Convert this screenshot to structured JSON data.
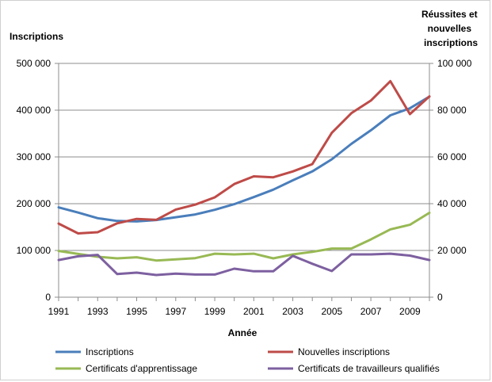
{
  "chart_data": {
    "type": "line",
    "y_left_label": "Inscriptions",
    "y_right_label": [
      "Réussites et",
      "nouvelles",
      "inscriptions"
    ],
    "xlabel": "Année",
    "y_left_lim": [
      0,
      500000
    ],
    "y_right_lim": [
      0,
      100000
    ],
    "y_left_ticks": [
      "0",
      "100 000",
      "200 000",
      "300 000",
      "400 000",
      "500 000"
    ],
    "y_right_ticks": [
      "0",
      "20 000",
      "40 000",
      "60 000",
      "80 000",
      "100 000"
    ],
    "x": [
      1991,
      1992,
      1993,
      1994,
      1995,
      1996,
      1997,
      1998,
      1999,
      2000,
      2001,
      2002,
      2003,
      2004,
      2005,
      2006,
      2007,
      2008,
      2009,
      2010
    ],
    "x_tick_labels": [
      "1991",
      "1993",
      "1995",
      "1997",
      "1999",
      "2001",
      "2003",
      "2005",
      "2007",
      "2009"
    ],
    "grid": "horizontal",
    "legend_position": "bottom",
    "series": [
      {
        "name": "Inscriptions",
        "axis": "left",
        "color": "#4a7ebb",
        "values": [
          192000,
          181000,
          169000,
          163000,
          162000,
          165000,
          171000,
          177000,
          187000,
          199000,
          214000,
          230000,
          250000,
          269000,
          295000,
          328000,
          357000,
          389000,
          404000,
          429000
        ]
      },
      {
        "name": "Nouvelles inscriptions",
        "axis": "right",
        "color": "#be4b48",
        "values": [
          31500,
          27300,
          27800,
          31600,
          33500,
          33100,
          37500,
          39600,
          42700,
          48400,
          51700,
          51300,
          53800,
          56900,
          70300,
          78700,
          84100,
          92400,
          78300,
          85900
        ]
      },
      {
        "name": "Certificats d'apprentissage",
        "axis": "right",
        "color": "#98b954",
        "values": [
          19800,
          18500,
          17300,
          16600,
          17100,
          15700,
          16200,
          16700,
          18600,
          18300,
          18600,
          16600,
          18300,
          19400,
          20800,
          20800,
          24700,
          29000,
          31000,
          36100
        ]
      },
      {
        "name": "Certificats de travailleurs qualifiés",
        "axis": "right",
        "color": "#7d60a0",
        "values": [
          15900,
          17500,
          18100,
          9900,
          10500,
          9500,
          10100,
          9700,
          9700,
          12200,
          11100,
          11100,
          17700,
          14300,
          11200,
          18300,
          18300,
          18600,
          17800,
          15900
        ]
      }
    ]
  }
}
